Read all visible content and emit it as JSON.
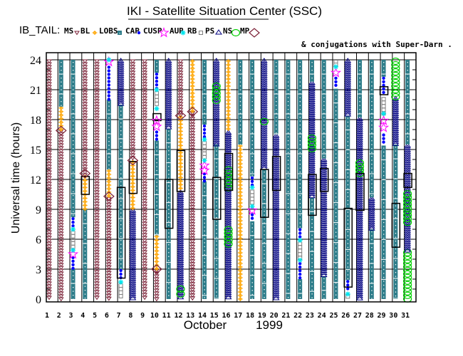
{
  "title": "IKI - Satellite Situation Center (SSC)",
  "legend_prefix": "IB_TAIL:",
  "legend": [
    {
      "key": "MS",
      "label": "MS",
      "symbol": "triangle-down",
      "color": "#7a1f35"
    },
    {
      "key": "BL",
      "label": "BL",
      "symbol": "sun",
      "color": "#ffa500"
    },
    {
      "key": "LOBS",
      "label": "LOBS",
      "symbol": "square-filled",
      "color": "#2e7d8a"
    },
    {
      "key": "CAP",
      "label": "CAP",
      "symbol": "dot",
      "color": "#0000ff"
    },
    {
      "key": "CUSP",
      "label": "CUSP",
      "symbol": "star",
      "color": "#ff00ff"
    },
    {
      "key": "AUR",
      "label": "AUR",
      "symbol": "asterisk",
      "color": "#00e5ee"
    },
    {
      "key": "RB",
      "label": "RB",
      "symbol": "square-open",
      "color": "#808080"
    },
    {
      "key": "PS",
      "label": "PS",
      "symbol": "triangle-up",
      "color": "#000080"
    },
    {
      "key": "NS",
      "label": "NS",
      "symbol": "circle",
      "color": "#00d000"
    },
    {
      "key": "MP",
      "label": "MP",
      "symbol": "diamond",
      "color": "#7a1f35"
    }
  ],
  "conj_note": "& conjugations with Super-Darn .",
  "chart_data": {
    "type": "scatter",
    "ylabel": "Universal time (hours)",
    "xlabel_month": "October",
    "xlabel_year": "1999",
    "ylim": [
      0,
      24
    ],
    "yticks": [
      "0",
      "3",
      "6",
      "9",
      "12",
      "15",
      "18",
      "21",
      "24"
    ],
    "xticks": [
      "1",
      "2",
      "3",
      "4",
      "5",
      "6",
      "7",
      "8",
      "9",
      "10",
      "11",
      "12",
      "13",
      "14",
      "15",
      "16",
      "17",
      "18",
      "19",
      "20",
      "21",
      "22",
      "23",
      "24",
      "25",
      "26",
      "27",
      "28",
      "29",
      "30",
      "31"
    ],
    "grid": true,
    "days": [
      {
        "day": 1,
        "segs": [
          [
            "MS",
            0,
            24
          ]
        ]
      },
      {
        "day": 2,
        "segs": [
          [
            "MS",
            0,
            17
          ],
          [
            "BL",
            17,
            19.3
          ],
          [
            "LOBS",
            19.3,
            24
          ]
        ],
        "points": [
          [
            "MP",
            16.9
          ]
        ]
      },
      {
        "day": 3,
        "segs": [
          [
            "LOBS",
            0,
            3
          ],
          [
            "CAP",
            3,
            4.3
          ],
          [
            "CAP",
            4.9,
            5.1
          ],
          [
            "RB",
            5.1,
            6.8
          ],
          [
            "CAP",
            7.2,
            8.2
          ],
          [
            "LOBS",
            8.2,
            24
          ]
        ],
        "points": [
          [
            "CUSP",
            4.5
          ],
          [
            "AUR",
            4.9
          ],
          [
            "AUR",
            7.0
          ]
        ]
      },
      {
        "day": 4,
        "segs": [
          [
            "LOBS",
            0,
            9
          ],
          [
            "BL",
            9,
            12.4
          ],
          [
            "MS",
            12.4,
            24
          ]
        ],
        "points": [
          [
            "MP",
            12.6
          ]
        ],
        "boxes": [
          [
            10.5,
            12.3
          ]
        ]
      },
      {
        "day": 5,
        "segs": [
          [
            "MS",
            0,
            24
          ]
        ]
      },
      {
        "day": 6,
        "segs": [
          [
            "MS",
            0,
            10.2
          ],
          [
            "BL",
            10.2,
            13
          ],
          [
            "LOBS",
            13,
            20
          ],
          [
            "CAP",
            20,
            23.4
          ]
        ],
        "points": [
          [
            "MP",
            10.3
          ],
          [
            "CUSP",
            23.8
          ],
          [
            "AUR",
            24
          ]
        ]
      },
      {
        "day": 7,
        "segs": [
          [
            "RB",
            0,
            1.5
          ],
          [
            "CAP",
            1.8,
            3
          ],
          [
            "LOBS",
            3,
            19.5
          ],
          [
            "PS",
            19.5,
            24
          ]
        ],
        "points": [
          [
            "AUR",
            1.7
          ]
        ],
        "boxes": [
          [
            2.1,
            11.2
          ]
        ]
      },
      {
        "day": 8,
        "segs": [
          [
            "PS",
            0,
            9
          ],
          [
            "BL",
            9,
            13.9
          ],
          [
            "MS",
            13.9,
            24
          ]
        ],
        "points": [
          [
            "MP",
            13.9
          ]
        ],
        "boxes": [
          [
            10.6,
            13.8
          ]
        ]
      },
      {
        "day": 9,
        "segs": [
          [
            "MS",
            0,
            24
          ]
        ]
      },
      {
        "day": 10,
        "segs": [
          [
            "MS",
            0,
            3
          ],
          [
            "BL",
            3,
            6.4
          ],
          [
            "LOBS",
            6.4,
            15.9
          ],
          [
            "CAP",
            15.9,
            16.9
          ],
          [
            "RB",
            19.3,
            20.8
          ],
          [
            "CAP",
            21.1,
            22.7
          ],
          [
            "LOBS",
            22.7,
            24
          ]
        ],
        "points": [
          [
            "MP",
            3
          ],
          [
            "CUSP",
            17.3
          ],
          [
            "CUSP",
            17.9
          ],
          [
            "AUR",
            19.1
          ],
          [
            "AUR",
            21
          ]
        ],
        "boxes": [
          [
            17.9,
            18.6
          ]
        ]
      },
      {
        "day": 11,
        "segs": [
          [
            "LOBS",
            0,
            17.1
          ],
          [
            "PS",
            17.1,
            24
          ]
        ],
        "boxes": [
          [
            7.1,
            12
          ]
        ]
      },
      {
        "day": 12,
        "segs": [
          [
            "PS",
            0,
            10.8
          ],
          [
            "BL",
            10.8,
            18.4
          ],
          [
            "MS",
            18.4,
            24
          ]
        ],
        "points": [
          [
            "NS",
            0.5
          ],
          [
            "NS",
            1
          ],
          [
            "MP",
            18.4
          ]
        ],
        "boxes": [
          [
            10.8,
            14.9
          ]
        ]
      },
      {
        "day": 13,
        "segs": [
          [
            "MS",
            0,
            18.8
          ],
          [
            "BL",
            18.8,
            24
          ]
        ],
        "points": [
          [
            "MP",
            18.8
          ]
        ]
      },
      {
        "day": 14,
        "segs": [
          [
            "LOBS",
            0,
            11.8
          ],
          [
            "CAP",
            11.8,
            12.7
          ],
          [
            "RB",
            13.9,
            15.8
          ],
          [
            "CAP",
            16.1,
            17.5
          ],
          [
            "LOBS",
            17.5,
            24
          ]
        ],
        "points": [
          [
            "CUSP",
            12.9
          ],
          [
            "CUSP",
            13.4
          ],
          [
            "AUR",
            13.9
          ],
          [
            "AUR",
            16
          ]
        ]
      },
      {
        "day": 15,
        "segs": [
          [
            "LOBS",
            0,
            15.5
          ],
          [
            "PS",
            15.5,
            24
          ],
          [
            "NS",
            19.9,
            21.5
          ]
        ],
        "boxes": [
          [
            8,
            12.2
          ]
        ]
      },
      {
        "day": 16,
        "segs": [
          [
            "PS",
            0,
            16.8
          ],
          [
            "NS",
            5.2,
            7.1
          ],
          [
            "NS",
            11,
            13.1
          ],
          [
            "BL",
            16.8,
            24
          ]
        ],
        "boxes": [
          [
            10.9,
            14.6
          ]
        ]
      },
      {
        "day": 17,
        "segs": [
          [
            "BL",
            0,
            15.5
          ],
          [
            "LOBS",
            15.5,
            24
          ]
        ]
      },
      {
        "day": 18,
        "segs": [
          [
            "LOBS",
            0,
            7.8
          ],
          [
            "CAP",
            7.8,
            8.6
          ],
          [
            "RB",
            9.6,
            10.9
          ],
          [
            "CAP",
            11.4,
            12.3
          ],
          [
            "LOBS",
            12.3,
            24
          ]
        ],
        "points": [
          [
            "CUSP",
            8.9
          ],
          [
            "AUR",
            9.3
          ],
          [
            "AUR",
            11.2
          ]
        ]
      },
      {
        "day": 19,
        "segs": [
          [
            "LOBS",
            0,
            13
          ],
          [
            "PS",
            13,
            24
          ]
        ],
        "points": [
          [
            "NS",
            17.8
          ]
        ],
        "boxes": [
          [
            8.2,
            13
          ]
        ]
      },
      {
        "day": 20,
        "segs": [
          [
            "PS",
            0,
            16.5
          ],
          [
            "LOBS",
            16.5,
            24
          ]
        ],
        "boxes": [
          [
            10.9,
            14.3
          ]
        ]
      },
      {
        "day": 21,
        "segs": [
          [
            "LOBS",
            0,
            24
          ]
        ]
      },
      {
        "day": 22,
        "segs": [
          [
            "LOBS",
            0,
            2
          ],
          [
            "CAP",
            2,
            3.7
          ],
          [
            "RB",
            4.1,
            5.7
          ],
          [
            "CAP",
            6.1,
            7.1
          ],
          [
            "LOBS",
            7.1,
            24
          ]
        ],
        "points": [
          [
            "AUR",
            3.9
          ],
          [
            "AUR",
            5.9
          ]
        ]
      },
      {
        "day": 23,
        "segs": [
          [
            "LOBS",
            0,
            10.2
          ],
          [
            "PS",
            10.2,
            21.8
          ],
          [
            "NS",
            14.9,
            16.3
          ],
          [
            "LOBS",
            21.8,
            24
          ]
        ],
        "boxes": [
          [
            8.4,
            12.5
          ]
        ]
      },
      {
        "day": 24,
        "segs": [
          [
            "LOBS",
            0,
            2.3
          ],
          [
            "PS",
            2.3,
            14.1
          ],
          [
            "LOBS",
            14.1,
            24
          ]
        ],
        "boxes": [
          [
            10.8,
            13.1
          ]
        ]
      },
      {
        "day": 25,
        "segs": [
          [
            "LOBS",
            0,
            21.1
          ],
          [
            "CAP",
            21.1,
            22.3
          ],
          [
            "RB",
            23.4,
            24
          ]
        ],
        "points": [
          [
            "CUSP",
            22.7
          ],
          [
            "AUR",
            23.3
          ]
        ]
      },
      {
        "day": 26,
        "segs": [
          [
            "RB",
            0,
            0.4
          ],
          [
            "CAP",
            0.8,
            1.9
          ],
          [
            "LOBS",
            1.9,
            18.4
          ],
          [
            "PS",
            18.4,
            24
          ]
        ],
        "points": [
          [
            "AUR",
            0.5
          ]
        ],
        "boxes": [
          [
            1.2,
            9.1
          ]
        ]
      },
      {
        "day": 27,
        "segs": [
          [
            "PS",
            0,
            18.2
          ],
          [
            "NS",
            12.5,
            13.8
          ],
          [
            "LOBS",
            18.2,
            24
          ]
        ],
        "boxes": [
          [
            8.9,
            12.6
          ]
        ]
      },
      {
        "day": 28,
        "segs": [
          [
            "LOBS",
            0,
            7
          ],
          [
            "PS",
            7,
            10.2
          ],
          [
            "LOBS",
            10.2,
            24
          ]
        ]
      },
      {
        "day": 29,
        "segs": [
          [
            "LOBS",
            0,
            15.4
          ],
          [
            "CAP",
            15.4,
            16.6
          ],
          [
            "RB",
            18.6,
            20.2
          ],
          [
            "CAP",
            20.5,
            22.3
          ],
          [
            "LOBS",
            22.3,
            24
          ]
        ],
        "points": [
          [
            "CUSP",
            17.2
          ],
          [
            "CUSP",
            17.9
          ],
          [
            "AUR",
            18.6
          ]
        ],
        "boxes": [
          [
            20.5,
            21.3
          ]
        ]
      },
      {
        "day": 30,
        "segs": [
          [
            "LOBS",
            0,
            15.5
          ],
          [
            "PS",
            15.5,
            20.2
          ],
          [
            "NS",
            20.2,
            24
          ]
        ],
        "boxes": [
          [
            5.2,
            9.6
          ]
        ]
      },
      {
        "day": 31,
        "segs": [
          [
            "NS",
            0,
            4.8
          ],
          [
            "PS",
            4.8,
            15.5
          ],
          [
            "NS",
            7.6,
            10.7
          ],
          [
            "LOBS",
            15.5,
            24
          ]
        ],
        "boxes": [
          [
            11.2,
            12.6
          ]
        ]
      }
    ]
  }
}
